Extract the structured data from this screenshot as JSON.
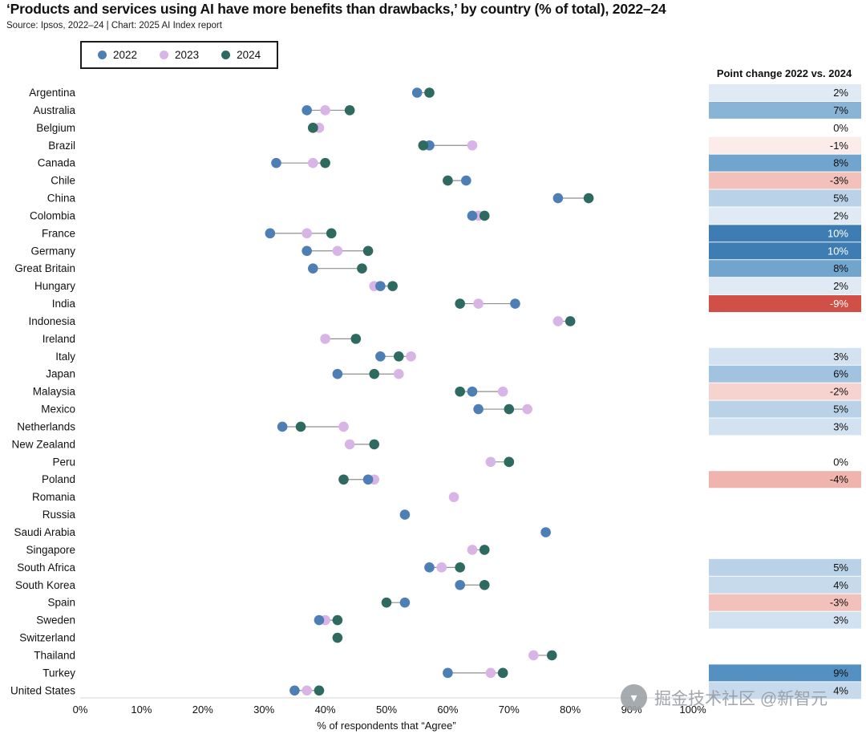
{
  "colors": {
    "series_2022": "#4d7fb5",
    "series_2023": "#d9b4e7",
    "series_2024": "#2e6a5f",
    "connector": "#8f8f8f",
    "change_positive_max": "#3d7db3",
    "change_negative_max": "#d05047"
  },
  "watermark": {
    "text": "掘金技术社区 @新智元"
  },
  "chart_data": {
    "type": "scatter",
    "subtype": "dumbbell-dot-plot",
    "title": "‘Products and services using AI have more benefits than drawbacks,’ by country (% of total), 2022–24",
    "source": "Source: Ipsos, 2022–24 | Chart: 2025 AI Index report",
    "xlabel": "% of respondents that “Agree”",
    "change_header": "Point change 2022 vs. 2024",
    "xlim": [
      0,
      100
    ],
    "x_ticks": [
      "0%",
      "10%",
      "20%",
      "30%",
      "40%",
      "50%",
      "60%",
      "70%",
      "80%",
      "90%",
      "100%"
    ],
    "series_labels": [
      "2022",
      "2023",
      "2024"
    ],
    "legend_position": "top-left",
    "grid": false,
    "countries": [
      {
        "name": "Argentina",
        "y2022": 55,
        "y2023": null,
        "y2024": 57,
        "change": 2
      },
      {
        "name": "Australia",
        "y2022": 37,
        "y2023": 40,
        "y2024": 44,
        "change": 7
      },
      {
        "name": "Belgium",
        "y2022": 38,
        "y2023": 39,
        "y2024": 38,
        "change": 0
      },
      {
        "name": "Brazil",
        "y2022": 57,
        "y2023": 64,
        "y2024": 56,
        "change": -1
      },
      {
        "name": "Canada",
        "y2022": 32,
        "y2023": 38,
        "y2024": 40,
        "change": 8
      },
      {
        "name": "Chile",
        "y2022": 63,
        "y2023": 60,
        "y2024": 60,
        "change": -3
      },
      {
        "name": "China",
        "y2022": 78,
        "y2023": null,
        "y2024": 83,
        "change": 5
      },
      {
        "name": "Colombia",
        "y2022": 64,
        "y2023": 65,
        "y2024": 66,
        "change": 2
      },
      {
        "name": "France",
        "y2022": 31,
        "y2023": 37,
        "y2024": 41,
        "change": 10
      },
      {
        "name": "Germany",
        "y2022": 37,
        "y2023": 42,
        "y2024": 47,
        "change": 10
      },
      {
        "name": "Great Britain",
        "y2022": 38,
        "y2023": null,
        "y2024": 46,
        "change": 8
      },
      {
        "name": "Hungary",
        "y2022": 49,
        "y2023": 48,
        "y2024": 51,
        "change": 2
      },
      {
        "name": "India",
        "y2022": 71,
        "y2023": 65,
        "y2024": 62,
        "change": -9
      },
      {
        "name": "Indonesia",
        "y2022": null,
        "y2023": 78,
        "y2024": 80,
        "change": null
      },
      {
        "name": "Ireland",
        "y2022": null,
        "y2023": 40,
        "y2024": 45,
        "change": null
      },
      {
        "name": "Italy",
        "y2022": 49,
        "y2023": 54,
        "y2024": 52,
        "change": 3
      },
      {
        "name": "Japan",
        "y2022": 42,
        "y2023": 52,
        "y2024": 48,
        "change": 6
      },
      {
        "name": "Malaysia",
        "y2022": 64,
        "y2023": 69,
        "y2024": 62,
        "change": -2
      },
      {
        "name": "Mexico",
        "y2022": 65,
        "y2023": 73,
        "y2024": 70,
        "change": 5
      },
      {
        "name": "Netherlands",
        "y2022": 33,
        "y2023": 43,
        "y2024": 36,
        "change": 3
      },
      {
        "name": "New Zealand",
        "y2022": null,
        "y2023": 44,
        "y2024": 48,
        "change": null
      },
      {
        "name": "Peru",
        "y2022": 70,
        "y2023": 67,
        "y2024": 70,
        "change": 0
      },
      {
        "name": "Poland",
        "y2022": 47,
        "y2023": 48,
        "y2024": 43,
        "change": -4
      },
      {
        "name": "Romania",
        "y2022": null,
        "y2023": 61,
        "y2024": null,
        "change": null
      },
      {
        "name": "Russia",
        "y2022": 53,
        "y2023": null,
        "y2024": null,
        "change": null
      },
      {
        "name": "Saudi Arabia",
        "y2022": 76,
        "y2023": null,
        "y2024": null,
        "change": null
      },
      {
        "name": "Singapore",
        "y2022": null,
        "y2023": 64,
        "y2024": 66,
        "change": null
      },
      {
        "name": "South Africa",
        "y2022": 57,
        "y2023": 59,
        "y2024": 62,
        "change": 5
      },
      {
        "name": "South Korea",
        "y2022": 62,
        "y2023": null,
        "y2024": 66,
        "change": 4
      },
      {
        "name": "Spain",
        "y2022": 53,
        "y2023": null,
        "y2024": 50,
        "change": -3
      },
      {
        "name": "Sweden",
        "y2022": 39,
        "y2023": 40,
        "y2024": 42,
        "change": 3
      },
      {
        "name": "Switzerland",
        "y2022": null,
        "y2023": null,
        "y2024": 42,
        "change": null
      },
      {
        "name": "Thailand",
        "y2022": null,
        "y2023": 74,
        "y2024": 77,
        "change": null
      },
      {
        "name": "Turkey",
        "y2022": 60,
        "y2023": 67,
        "y2024": 69,
        "change": 9
      },
      {
        "name": "United States",
        "y2022": 35,
        "y2023": 37,
        "y2024": 39,
        "change": 4
      }
    ]
  }
}
